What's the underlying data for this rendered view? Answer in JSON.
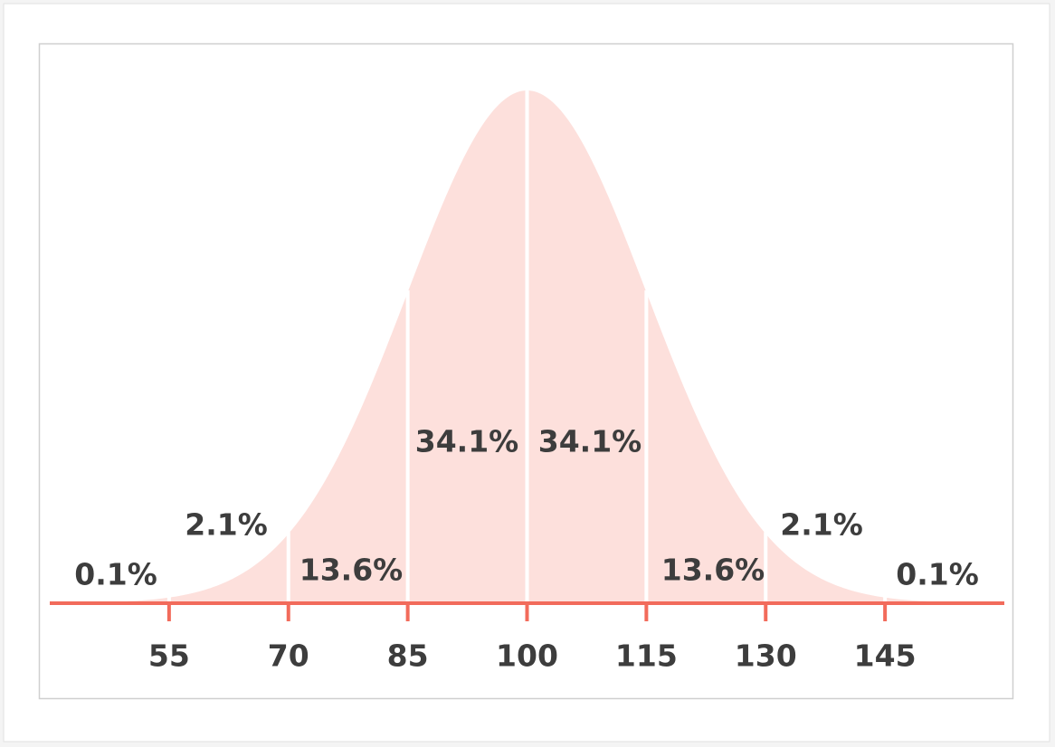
{
  "chart_data": {
    "type": "normal-curve",
    "values": [
      0.1,
      2.1,
      13.6,
      34.1,
      34.1,
      13.6,
      2.1,
      0.1
    ],
    "value_labels": [
      "0.1%",
      "2.1%",
      "13.6%",
      "34.1%",
      "34.1%",
      "13.6%",
      "2.1%",
      "0.1%"
    ],
    "xlim": [
      40,
      160
    ],
    "xticks": [
      55,
      70,
      85,
      100,
      115,
      130,
      145
    ],
    "color": "#fde0dc",
    "axis_color": "#f26b5b"
  }
}
